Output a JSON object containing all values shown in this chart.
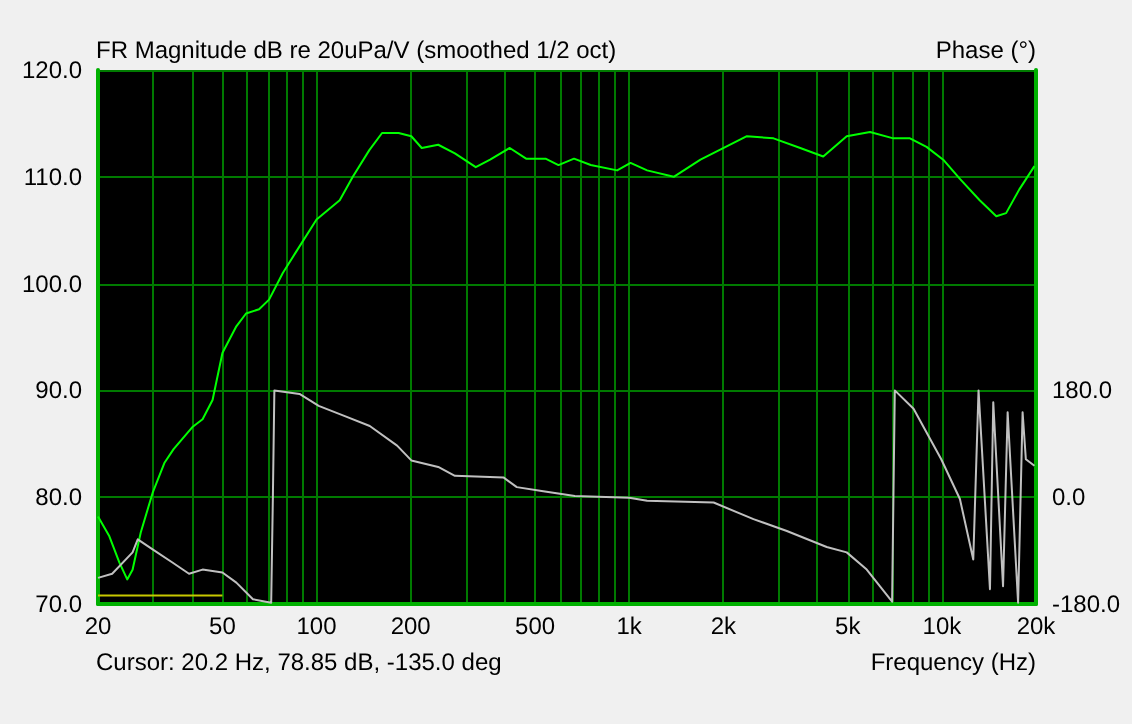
{
  "chart_data": {
    "type": "line",
    "title": "FR Magnitude dB re 20uPa/V (smoothed 1/2 oct)",
    "xlabel": "Frequency (Hz)",
    "y2label": "Phase (°)",
    "annotations": [
      "Cursor: 20.2 Hz, 78.85 dB, -135.0 deg"
    ],
    "log": "x",
    "grid": true,
    "marker": "none",
    "line_style": "solid",
    "xlim": [
      20,
      20000
    ],
    "xticks": [
      20,
      {
        "value": 30,
        "label": null
      },
      {
        "value": 40,
        "label": null
      },
      50,
      {
        "value": 60,
        "label": null
      },
      {
        "value": 70,
        "label": null
      },
      {
        "value": 80,
        "label": null
      },
      {
        "value": 90,
        "label": null
      },
      100,
      200,
      {
        "value": 300,
        "label": null
      },
      {
        "value": 400,
        "label": null
      },
      500,
      {
        "value": 600,
        "label": null
      },
      {
        "value": 700,
        "label": null
      },
      {
        "value": 800,
        "label": null
      },
      {
        "value": 900,
        "label": null
      },
      {
        "value": 1000,
        "label": "1k"
      },
      {
        "value": 2000,
        "label": "2k"
      },
      {
        "value": 3000,
        "label": null
      },
      {
        "value": 4000,
        "label": null
      },
      {
        "value": 5000,
        "label": "5k"
      },
      {
        "value": 6000,
        "label": null
      },
      {
        "value": 7000,
        "label": null
      },
      {
        "value": 8000,
        "label": null
      },
      {
        "value": 9000,
        "label": null
      },
      {
        "value": 10000,
        "label": "10k"
      },
      {
        "value": 20000,
        "label": "20k"
      }
    ],
    "ylim": [
      70,
      120
    ],
    "yticks": [
      {
        "value": 70,
        "label": "70.0"
      },
      {
        "value": 80,
        "label": "80.0"
      },
      {
        "value": 90,
        "label": "90.0"
      },
      {
        "value": 100,
        "label": "100.0"
      },
      {
        "value": 110,
        "label": "110.0"
      },
      {
        "value": 120,
        "label": "120.0"
      }
    ],
    "y2lim": [
      -180,
      720
    ],
    "y2ticks": [
      {
        "value": -180,
        "label": "-180.0"
      },
      {
        "value": 0,
        "label": "0.0"
      },
      {
        "value": 180,
        "label": "180.0"
      }
    ],
    "series": [
      {
        "color": "#00ff00",
        "x": [
          20,
          21.7,
          23.4,
          24.8,
          25.8,
          27.4,
          29.9,
          32.6,
          34.9,
          40.2,
          43.2,
          46.5,
          50,
          55.4,
          59.5,
          65.5,
          70.5,
          78,
          85.7,
          100,
          118.6,
          130.6,
          147.5,
          162,
          183,
          201,
          217,
          245,
          277,
          323,
          359,
          415,
          468,
          540,
          594,
          666,
          753,
          915,
          1010,
          1141,
          1388,
          1690,
          2379,
          2895,
          3524,
          4174,
          4962,
          5891,
          6993,
          7906,
          8931,
          10098,
          11420,
          13210,
          14930,
          16050,
          17670,
          19770
        ],
        "values": [
          78.2,
          76.4,
          73.9,
          72.3,
          73.2,
          76.7,
          80.4,
          83.2,
          84.5,
          86.6,
          87.3,
          89.1,
          93.5,
          96.0,
          97.2,
          97.6,
          98.5,
          101.0,
          102.9,
          106.0,
          107.8,
          110.0,
          112.5,
          114.1,
          114.1,
          113.8,
          112.7,
          113.0,
          112.2,
          110.9,
          111.6,
          112.7,
          111.7,
          111.7,
          111.1,
          111.7,
          111.1,
          110.6,
          111.3,
          110.6,
          110.0,
          111.6,
          113.8,
          113.6,
          112.7,
          111.9,
          113.8,
          114.2,
          113.6,
          113.6,
          112.8,
          111.6,
          109.8,
          107.8,
          106.3,
          106.6,
          108.8,
          111.0
        ]
      },
      {
        "color": "#c0c0c0",
        "axis": "y2",
        "x": [
          20,
          22.2,
          25.8,
          26.8,
          29.9,
          34.6,
          39.1,
          43.2,
          50,
          55.4,
          62.6,
          71.6,
          72.5,
          73.3,
          88.2,
          101.6,
          122.6,
          148,
          181,
          201,
          245,
          277,
          397,
          437,
          531,
          670,
          1000,
          1141,
          1862,
          2497,
          3193,
          4282,
          4962,
          5750,
          6932,
          7000,
          7070,
          8118,
          9953,
          11420,
          12600,
          13100,
          14250,
          14600,
          15690,
          16230,
          17530,
          18120,
          18560,
          19770
        ],
        "values": [
          -136,
          -129,
          -93,
          -71,
          -88,
          -110,
          -129,
          -122,
          -127,
          -144,
          -172,
          -178,
          0,
          180,
          174,
          154,
          137,
          120,
          87,
          62,
          51,
          36,
          33,
          17,
          10,
          2,
          -1,
          -6,
          -9,
          -37,
          -57,
          -84,
          -93,
          -122,
          -176,
          2,
          180,
          149,
          64,
          -3,
          -105,
          180,
          -155,
          160,
          -150,
          143,
          -178,
          143,
          64,
          53
        ]
      },
      {
        "color": "#c8c800",
        "x": [
          20,
          50
        ],
        "values": [
          70.8,
          70.8
        ]
      }
    ]
  }
}
